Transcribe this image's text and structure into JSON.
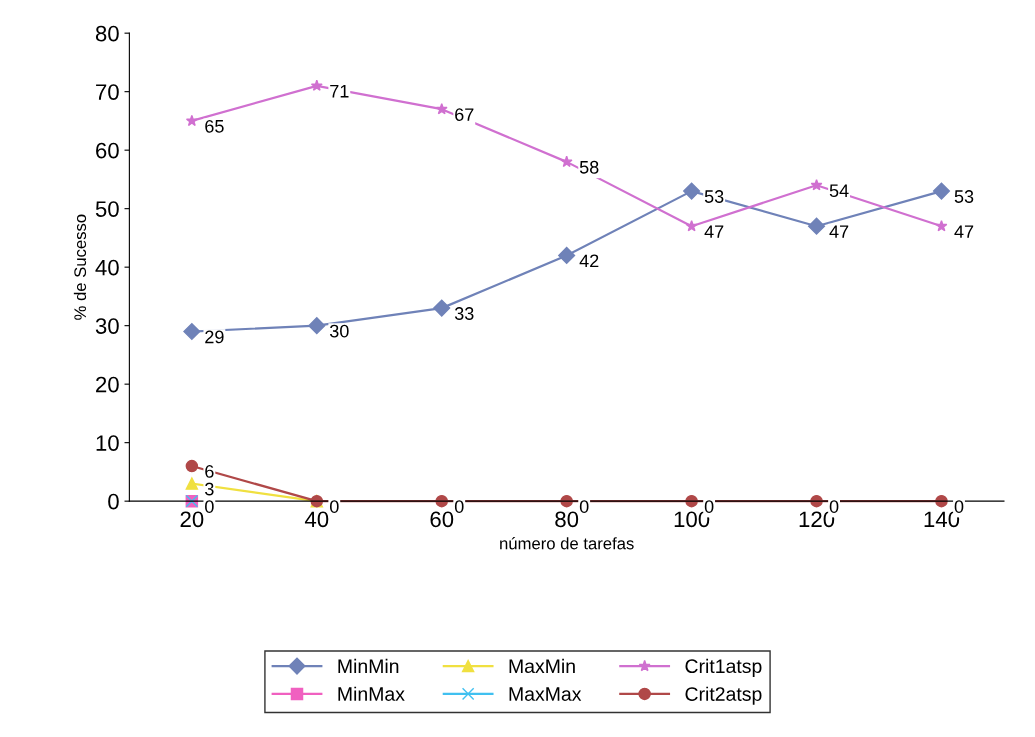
{
  "chart_data": {
    "type": "line",
    "xlabel": "número de tarefas",
    "ylabel": "% de Sucesso",
    "categories": [
      "20",
      "40",
      "60",
      "80",
      "100",
      "120",
      "140"
    ],
    "ylim": [
      0,
      80
    ],
    "yticks": [
      0,
      10,
      20,
      30,
      40,
      50,
      60,
      70,
      80
    ],
    "grid": false,
    "legend": "bottom",
    "series": [
      {
        "name": "MinMin",
        "color": "#6f82b8",
        "marker": "diamond",
        "values": [
          29,
          30,
          33,
          42,
          53,
          47,
          53
        ],
        "value_labels": [
          "29",
          "30",
          "33",
          "42",
          "53",
          "47",
          "53"
        ]
      },
      {
        "name": "MinMax",
        "color": "#f060c0",
        "marker": "square",
        "values": [
          0,
          null,
          null,
          null,
          null,
          null,
          null
        ],
        "value_labels": [
          "0",
          null,
          null,
          null,
          null,
          null,
          null
        ]
      },
      {
        "name": "MaxMin",
        "color": "#f0e040",
        "marker": "triangle",
        "values": [
          3,
          0,
          null,
          null,
          null,
          null,
          null
        ],
        "value_labels": [
          "3",
          null,
          null,
          null,
          null,
          null,
          null
        ]
      },
      {
        "name": "MaxMax",
        "color": "#40c0f0",
        "marker": "cross",
        "values": [
          0,
          null,
          null,
          null,
          null,
          null,
          null
        ],
        "value_labels": [
          null,
          null,
          null,
          null,
          null,
          null,
          null
        ]
      },
      {
        "name": "Crit1atsp",
        "color": "#d070d0",
        "marker": "star",
        "values": [
          65,
          71,
          67,
          58,
          47,
          54,
          47
        ],
        "value_labels": [
          "65",
          "71",
          "67",
          "58",
          "47",
          "54",
          "47"
        ]
      },
      {
        "name": "Crit2atsp",
        "color": "#b04848",
        "marker": "circle",
        "values": [
          6,
          0,
          0,
          0,
          0,
          0,
          0
        ],
        "value_labels": [
          "6",
          "0",
          "0",
          "0",
          "0",
          "0",
          "0"
        ]
      }
    ]
  }
}
